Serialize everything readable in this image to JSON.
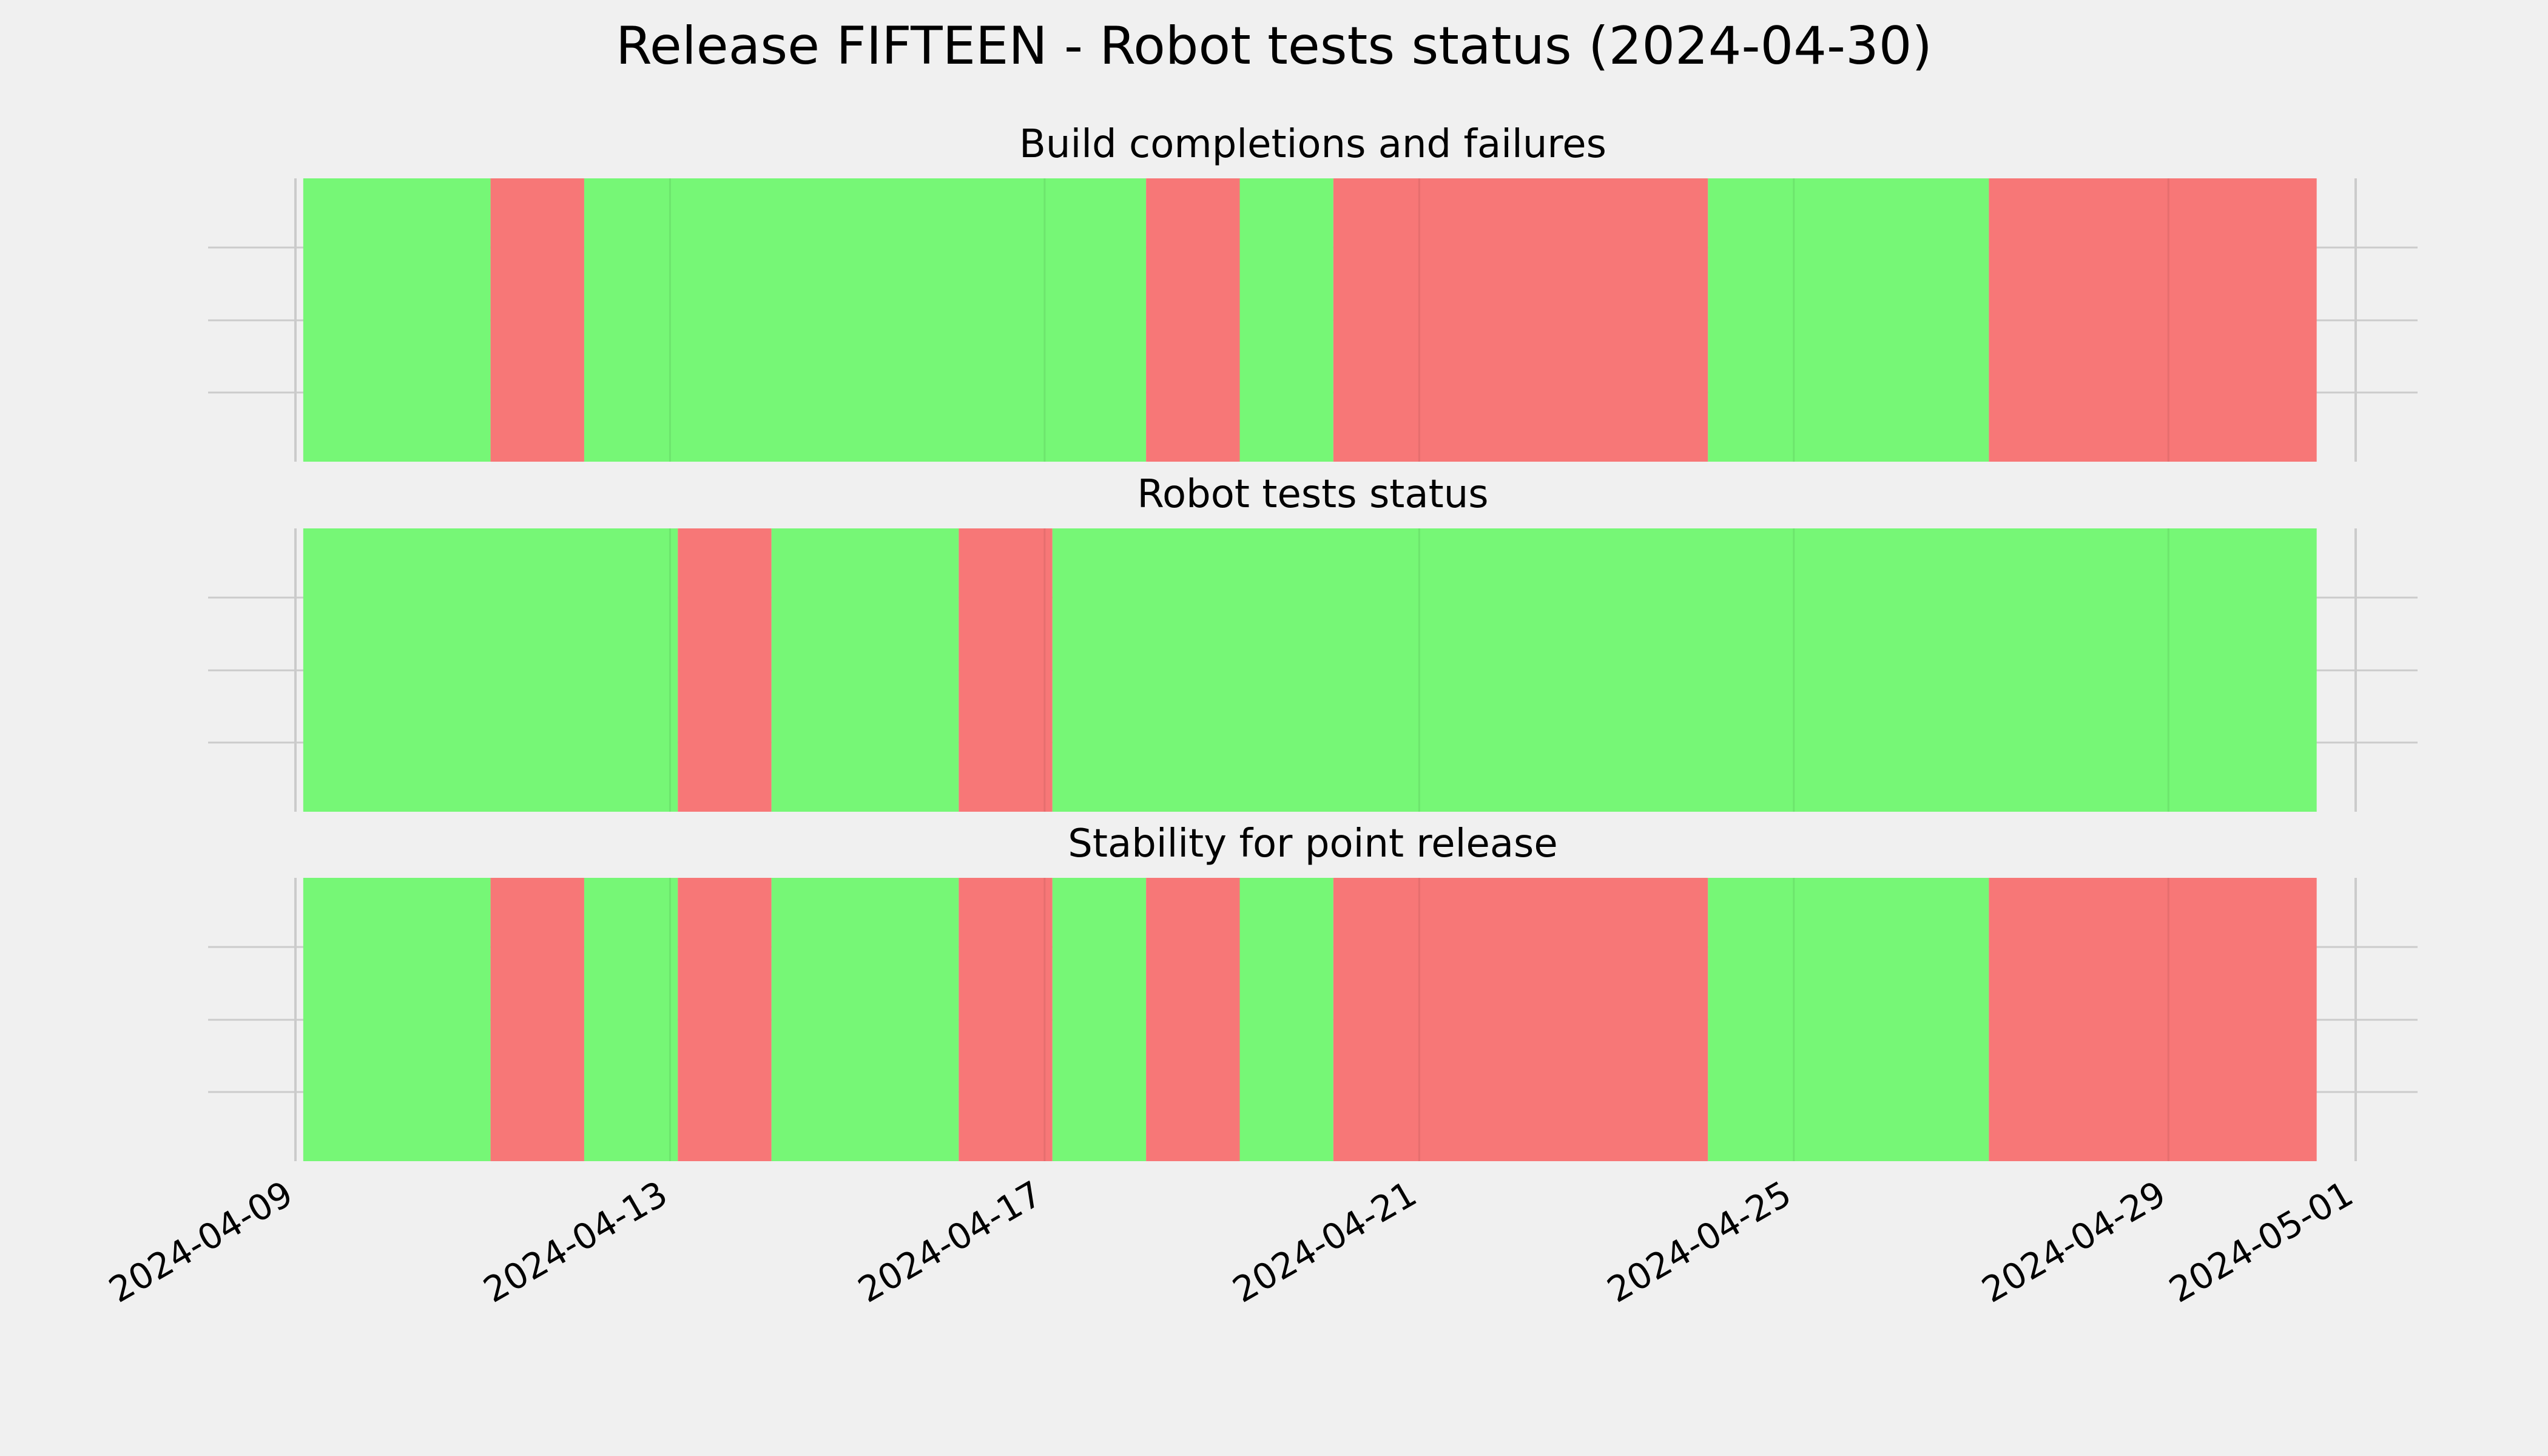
{
  "title": "Release FIFTEEN - Robot tests status (2024-04-30)",
  "colors": {
    "pass": "#76f776",
    "fail": "#f77777",
    "grid": "#cbcbcb",
    "background": "#f0f0f0"
  },
  "chart_data": {
    "type": "timeline",
    "x_axis": {
      "ticks": [
        "2024-04-09",
        "2024-04-13",
        "2024-04-17",
        "2024-04-21",
        "2024-04-25",
        "2024-04-29",
        "2024-05-01"
      ],
      "range": [
        "2024-04-09",
        "2024-05-01"
      ]
    },
    "grid": true,
    "panels": [
      {
        "title": "Build completions and failures",
        "segments": [
          {
            "start": "2024-04-09T02:00",
            "end": "2024-04-11T02:00",
            "status": "pass"
          },
          {
            "start": "2024-04-11T02:00",
            "end": "2024-04-12T02:00",
            "status": "fail"
          },
          {
            "start": "2024-04-12T02:00",
            "end": "2024-04-18T02:00",
            "status": "pass"
          },
          {
            "start": "2024-04-18T02:00",
            "end": "2024-04-19T02:00",
            "status": "fail"
          },
          {
            "start": "2024-04-19T02:00",
            "end": "2024-04-20T02:00",
            "status": "pass"
          },
          {
            "start": "2024-04-20T02:00",
            "end": "2024-04-24T02:00",
            "status": "fail"
          },
          {
            "start": "2024-04-24T02:00",
            "end": "2024-04-27T02:00",
            "status": "pass"
          },
          {
            "start": "2024-04-27T02:00",
            "end": "2024-04-30T14:00",
            "status": "fail"
          }
        ]
      },
      {
        "title": "Robot tests status",
        "segments": [
          {
            "start": "2024-04-09T02:00",
            "end": "2024-04-13T02:00",
            "status": "pass"
          },
          {
            "start": "2024-04-13T02:00",
            "end": "2024-04-14T02:00",
            "status": "fail"
          },
          {
            "start": "2024-04-14T02:00",
            "end": "2024-04-16T02:00",
            "status": "pass"
          },
          {
            "start": "2024-04-16T02:00",
            "end": "2024-04-17T02:00",
            "status": "fail"
          },
          {
            "start": "2024-04-17T02:00",
            "end": "2024-04-30T14:00",
            "status": "pass"
          }
        ]
      },
      {
        "title": "Stability for point release",
        "segments": [
          {
            "start": "2024-04-09T02:00",
            "end": "2024-04-11T02:00",
            "status": "pass"
          },
          {
            "start": "2024-04-11T02:00",
            "end": "2024-04-12T02:00",
            "status": "fail"
          },
          {
            "start": "2024-04-12T02:00",
            "end": "2024-04-13T02:00",
            "status": "pass"
          },
          {
            "start": "2024-04-13T02:00",
            "end": "2024-04-14T02:00",
            "status": "fail"
          },
          {
            "start": "2024-04-14T02:00",
            "end": "2024-04-16T02:00",
            "status": "pass"
          },
          {
            "start": "2024-04-16T02:00",
            "end": "2024-04-17T02:00",
            "status": "fail"
          },
          {
            "start": "2024-04-17T02:00",
            "end": "2024-04-18T02:00",
            "status": "pass"
          },
          {
            "start": "2024-04-18T02:00",
            "end": "2024-04-19T02:00",
            "status": "fail"
          },
          {
            "start": "2024-04-19T02:00",
            "end": "2024-04-20T02:00",
            "status": "pass"
          },
          {
            "start": "2024-04-20T02:00",
            "end": "2024-04-24T02:00",
            "status": "fail"
          },
          {
            "start": "2024-04-24T02:00",
            "end": "2024-04-27T02:00",
            "status": "pass"
          },
          {
            "start": "2024-04-27T02:00",
            "end": "2024-04-30T14:00",
            "status": "fail"
          }
        ]
      }
    ]
  }
}
